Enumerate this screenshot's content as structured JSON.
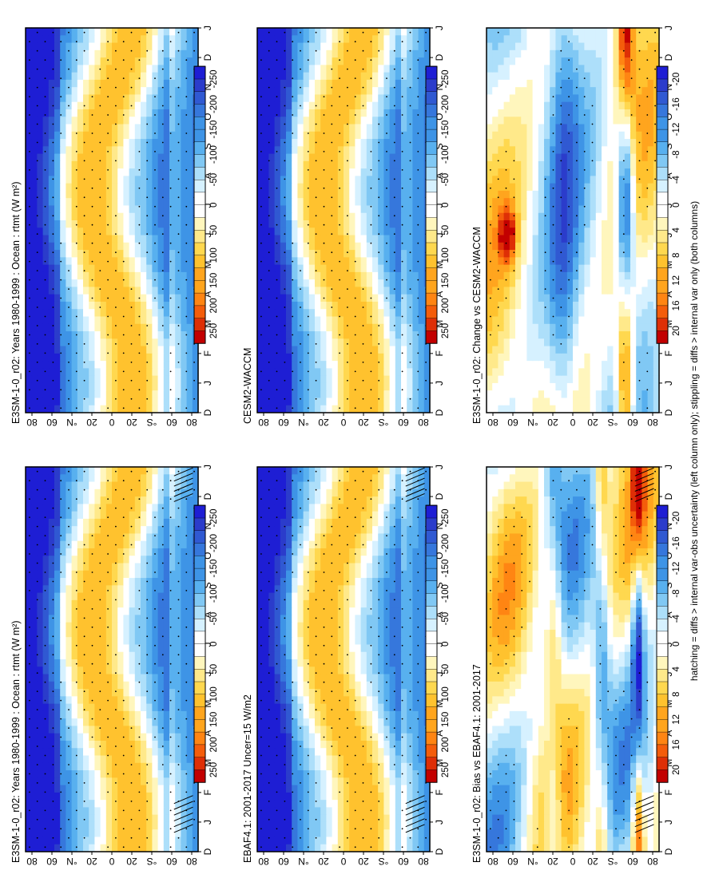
{
  "footnote": "hatching = diffs > internal var-obs uncertainty (left column only); stippling = diffs > internal var only (both columns)",
  "months": [
    "D",
    "J",
    "F",
    "M",
    "A",
    "M",
    "J",
    "J",
    "A",
    "S",
    "O",
    "N",
    "D",
    "J"
  ],
  "lat_ticks": [
    "80",
    "60",
    "°N",
    "20",
    "0",
    "20",
    "°S",
    "60",
    "80"
  ],
  "colors": {
    "abs_scale": [
      "#ffffff",
      "#fff9c4",
      "#ffeb80",
      "#ffd740",
      "#ffbe2a",
      "#ffa21a",
      "#ff8010",
      "#f25a0a",
      "#de2b06",
      "#bf0000",
      "#d3f0ff",
      "#aadcfa",
      "#7cc6f4",
      "#52aef0",
      "#3a91e6",
      "#3474da",
      "#2e57d2",
      "#2a3ccb",
      "#1f1fd2"
    ],
    "stipple": "#000000"
  },
  "chart_data": [
    {
      "type": "heatmap",
      "title": "E3SM-1-0_r02: Years 1980-1999 : Ocean : rtmt (W m²)",
      "colorbar_ticks": [
        "250",
        "200",
        "150",
        "100",
        "50",
        "0",
        "-50",
        "-100",
        "-150",
        "-200",
        "-250"
      ],
      "field": "absolute",
      "hatching": true
    },
    {
      "type": "heatmap",
      "title": "EBAF4.1: 2001-2017 Uncer=15 W/m2",
      "colorbar_ticks": [
        "250",
        "200",
        "150",
        "100",
        "50",
        "0",
        "-50",
        "-100",
        "-150",
        "-200",
        "-250"
      ],
      "field": "absolute",
      "hatching": true
    },
    {
      "type": "heatmap",
      "title": "E3SM-1-0_r02: Bias vs EBAF4.1: 2001-2017",
      "colorbar_ticks": [
        "20",
        "16",
        "12",
        "8",
        "4",
        "0",
        "-4",
        "-8",
        "-12",
        "-16",
        "-20"
      ],
      "field": "bias",
      "hatching": true
    },
    {
      "type": "heatmap",
      "title": "E3SM-1-0_r02: Years 1980-1999 : Ocean : rtmt (W m²)",
      "colorbar_ticks": [
        "250",
        "200",
        "150",
        "100",
        "50",
        "0",
        "-50",
        "-100",
        "-150",
        "-200",
        "-250"
      ],
      "field": "absolute",
      "hatching": false
    },
    {
      "type": "heatmap",
      "title": "CESM2-WACCM",
      "colorbar_ticks": [
        "250",
        "200",
        "150",
        "100",
        "50",
        "0",
        "-50",
        "-100",
        "-150",
        "-200",
        "-250"
      ],
      "field": "absolute",
      "hatching": false
    },
    {
      "type": "heatmap",
      "title": "E3SM-1-0_r02: Change vs CESM2-WACCM",
      "colorbar_ticks": [
        "20",
        "16",
        "12",
        "8",
        "4",
        "0",
        "-4",
        "-8",
        "-12",
        "-16",
        "-20"
      ],
      "field": "change",
      "hatching": false
    }
  ]
}
